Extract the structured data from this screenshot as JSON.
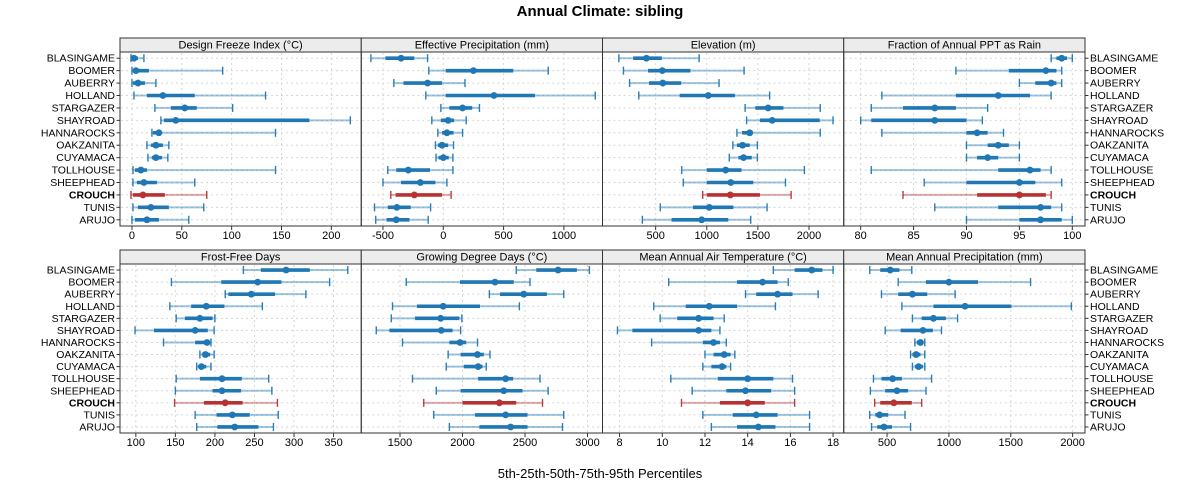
{
  "title": "Annual Climate: sibling",
  "caption": "5th-25th-50th-75th-95th Percentiles",
  "highlight_station": "CROUCH",
  "colors": {
    "series": "#1f77b4",
    "highlight": "#b73333",
    "grid": "#d6d6d6",
    "strip_bg": "#ececec",
    "border": "#333333",
    "text": "#000000"
  },
  "stations": [
    "BLASINGAME",
    "BOOMER",
    "AUBERRY",
    "HOLLAND",
    "STARGAZER",
    "SHAYROAD",
    "HANNAROCKS",
    "OAKZANITA",
    "CUYAMACA",
    "TOLLHOUSE",
    "SHEEPHEAD",
    "CROUCH",
    "TUNIS",
    "ARUJO"
  ],
  "chart_data": {
    "type": "interval-dotplot-trellis",
    "percentiles": [
      5,
      25,
      50,
      75,
      95
    ],
    "layout": {
      "rows": 2,
      "cols": 4
    },
    "panels": [
      {
        "title": "Design Freeze Index (°C)",
        "ticks": [
          0,
          50,
          100,
          150,
          200
        ],
        "domain": [
          -12,
          230
        ],
        "values": [
          [
            -1,
            0,
            2,
            6,
            12
          ],
          [
            0,
            1,
            4,
            17,
            91
          ],
          [
            0,
            1,
            6,
            13,
            24
          ],
          [
            2,
            15,
            31,
            63,
            134
          ],
          [
            23,
            39,
            53,
            65,
            101
          ],
          [
            29,
            32,
            44,
            178,
            219
          ],
          [
            20,
            21,
            27,
            29,
            144
          ],
          [
            15,
            19,
            24,
            31,
            37
          ],
          [
            16,
            20,
            24,
            30,
            36
          ],
          [
            1,
            3,
            9,
            15,
            144
          ],
          [
            1,
            5,
            12,
            25,
            63
          ],
          [
            -1,
            1,
            11,
            33,
            75
          ],
          [
            1,
            6,
            19,
            37,
            72
          ],
          [
            0,
            3,
            15,
            27,
            57
          ]
        ]
      },
      {
        "title": "Effective Precipitation (mm)",
        "ticks": [
          -500,
          0,
          500,
          1000
        ],
        "domain": [
          -680,
          1320
        ],
        "values": [
          [
            -600,
            -480,
            -350,
            -240,
            -130
          ],
          [
            -120,
            20,
            250,
            580,
            870
          ],
          [
            -410,
            -330,
            -130,
            -10,
            180
          ],
          [
            -145,
            20,
            420,
            760,
            1260
          ],
          [
            -20,
            50,
            160,
            240,
            300
          ],
          [
            -95,
            -20,
            40,
            90,
            190
          ],
          [
            -45,
            -10,
            30,
            85,
            160
          ],
          [
            -65,
            -45,
            -10,
            40,
            85
          ],
          [
            -60,
            -40,
            0,
            45,
            80
          ],
          [
            -460,
            -390,
            -290,
            -110,
            80
          ],
          [
            -500,
            -350,
            -190,
            -65,
            30
          ],
          [
            -435,
            -395,
            -240,
            -10,
            65
          ],
          [
            -570,
            -460,
            -385,
            -270,
            -105
          ],
          [
            -560,
            -470,
            -390,
            -280,
            -125
          ]
        ]
      },
      {
        "title": "Elevation (m)",
        "ticks": [
          500,
          1000,
          1500,
          2000
        ],
        "domain": [
          -20,
          2340
        ],
        "values": [
          [
            140,
            280,
            410,
            560,
            925
          ],
          [
            185,
            425,
            565,
            840,
            1365
          ],
          [
            245,
            435,
            570,
            750,
            1120
          ],
          [
            335,
            735,
            1015,
            1275,
            1615
          ],
          [
            1375,
            1475,
            1600,
            1750,
            2110
          ],
          [
            1390,
            1520,
            1640,
            2105,
            2235
          ],
          [
            1295,
            1345,
            1420,
            1450,
            2110
          ],
          [
            1255,
            1295,
            1350,
            1420,
            1495
          ],
          [
            1220,
            1310,
            1360,
            1440,
            1495
          ],
          [
            755,
            1000,
            1185,
            1340,
            1955
          ],
          [
            770,
            1000,
            1235,
            1455,
            1770
          ],
          [
            960,
            1000,
            1230,
            1520,
            1825
          ],
          [
            545,
            865,
            1025,
            1260,
            1590
          ],
          [
            370,
            655,
            950,
            1210,
            1430
          ]
        ]
      },
      {
        "title": "Fraction of Annual PPT as Rain",
        "ticks": [
          80,
          85,
          90,
          95,
          100
        ],
        "domain": [
          78.4,
          101.2
        ],
        "values": [
          [
            98,
            98.5,
            99,
            99.5,
            100
          ],
          [
            89,
            94,
            97.5,
            98.5,
            99
          ],
          [
            95,
            96.5,
            98,
            98.5,
            99
          ],
          [
            82,
            89,
            93,
            96,
            98
          ],
          [
            81,
            84,
            87,
            89,
            92
          ],
          [
            80,
            81,
            87,
            90,
            91.5
          ],
          [
            82,
            90,
            91,
            92,
            93.5
          ],
          [
            90,
            92,
            93,
            94,
            95
          ],
          [
            90,
            91,
            92,
            93,
            95
          ],
          [
            81,
            93,
            96,
            97,
            98
          ],
          [
            86,
            90,
            95,
            96.5,
            99
          ],
          [
            84,
            91,
            95,
            97.5,
            98
          ],
          [
            87,
            93,
            97,
            98,
            99
          ],
          [
            90,
            95,
            97,
            99,
            100
          ]
        ]
      },
      {
        "title": "Frost-Free Days",
        "ticks": [
          100,
          150,
          200,
          250,
          300,
          350
        ],
        "domain": [
          80,
          385
        ],
        "values": [
          [
            236,
            258,
            290,
            320,
            368
          ],
          [
            145,
            208,
            254,
            284,
            345
          ],
          [
            213,
            217,
            246,
            276,
            315
          ],
          [
            143,
            170,
            189,
            212,
            260
          ],
          [
            151,
            162,
            181,
            197,
            200
          ],
          [
            99,
            123,
            175,
            191,
            199
          ],
          [
            135,
            175,
            190,
            192,
            195
          ],
          [
            181,
            184,
            188,
            194,
            199
          ],
          [
            177,
            179,
            183,
            189,
            195
          ],
          [
            151,
            181,
            209,
            234,
            268
          ],
          [
            150,
            197,
            209,
            233,
            272
          ],
          [
            149,
            186,
            213,
            235,
            279
          ],
          [
            175,
            202,
            222,
            244,
            280
          ],
          [
            177,
            203,
            225,
            255,
            274
          ]
        ]
      },
      {
        "title": "Growing Degree Days (°C)",
        "ticks": [
          1500,
          2000,
          2500,
          3000
        ],
        "domain": [
          1190,
          3120
        ],
        "values": [
          [
            2430,
            2590,
            2765,
            2915,
            3015
          ],
          [
            1550,
            1980,
            2260,
            2410,
            2540
          ],
          [
            2215,
            2300,
            2490,
            2675,
            2810
          ],
          [
            1440,
            1635,
            1845,
            2140,
            2455
          ],
          [
            1430,
            1620,
            1825,
            1975,
            1995
          ],
          [
            1310,
            1415,
            1830,
            1920,
            1985
          ],
          [
            1520,
            1895,
            1980,
            2030,
            2120
          ],
          [
            1885,
            1985,
            2120,
            2170,
            2220
          ],
          [
            1870,
            2010,
            2125,
            2160,
            2190
          ],
          [
            1600,
            2125,
            2345,
            2405,
            2620
          ],
          [
            1790,
            1985,
            2330,
            2480,
            2685
          ],
          [
            1690,
            2000,
            2295,
            2430,
            2640
          ],
          [
            1770,
            2100,
            2345,
            2520,
            2810
          ],
          [
            1895,
            2135,
            2385,
            2520,
            2800
          ]
        ]
      },
      {
        "title": "Mean Annual Air Temperature (°C)",
        "ticks": [
          8,
          10,
          12,
          14,
          16,
          18
        ],
        "domain": [
          7.2,
          18.5
        ],
        "values": [
          [
            15.2,
            16.2,
            17.0,
            17.5,
            18.0
          ],
          [
            10.3,
            13.5,
            14.7,
            15.4,
            15.9
          ],
          [
            13.9,
            14.4,
            15.4,
            16.1,
            17.3
          ],
          [
            9.6,
            11.1,
            12.2,
            13.5,
            15.3
          ],
          [
            9.9,
            10.7,
            11.7,
            12.4,
            12.9
          ],
          [
            7.9,
            8.6,
            11.7,
            12.3,
            12.7
          ],
          [
            9.5,
            11.9,
            12.4,
            12.7,
            13.0
          ],
          [
            12.0,
            12.4,
            12.9,
            13.2,
            13.4
          ],
          [
            11.9,
            12.3,
            12.8,
            13.0,
            13.2
          ],
          [
            10.4,
            12.6,
            14.0,
            15.2,
            16.1
          ],
          [
            11.4,
            13.0,
            13.9,
            15.1,
            16.2
          ],
          [
            10.9,
            12.7,
            14.0,
            14.8,
            16.2
          ],
          [
            11.9,
            13.3,
            14.4,
            15.4,
            16.9
          ],
          [
            12.3,
            13.5,
            14.5,
            15.3,
            16.9
          ]
        ]
      },
      {
        "title": "Mean Annual Precipitation (mm)",
        "ticks": [
          500,
          1000,
          1500,
          2000
        ],
        "domain": [
          150,
          2100
        ],
        "values": [
          [
            360,
            445,
            525,
            600,
            700
          ],
          [
            590,
            815,
            1000,
            1235,
            1660
          ],
          [
            455,
            590,
            705,
            825,
            1050
          ],
          [
            620,
            875,
            1130,
            1505,
            1990
          ],
          [
            705,
            780,
            875,
            975,
            1070
          ],
          [
            485,
            610,
            790,
            870,
            940
          ],
          [
            725,
            740,
            770,
            795,
            805
          ],
          [
            690,
            705,
            735,
            770,
            805
          ],
          [
            705,
            725,
            755,
            790,
            805
          ],
          [
            390,
            455,
            545,
            620,
            860
          ],
          [
            365,
            485,
            580,
            670,
            815
          ],
          [
            400,
            445,
            555,
            700,
            780
          ],
          [
            360,
            405,
            440,
            510,
            645
          ],
          [
            375,
            420,
            475,
            540,
            690
          ]
        ]
      }
    ]
  }
}
